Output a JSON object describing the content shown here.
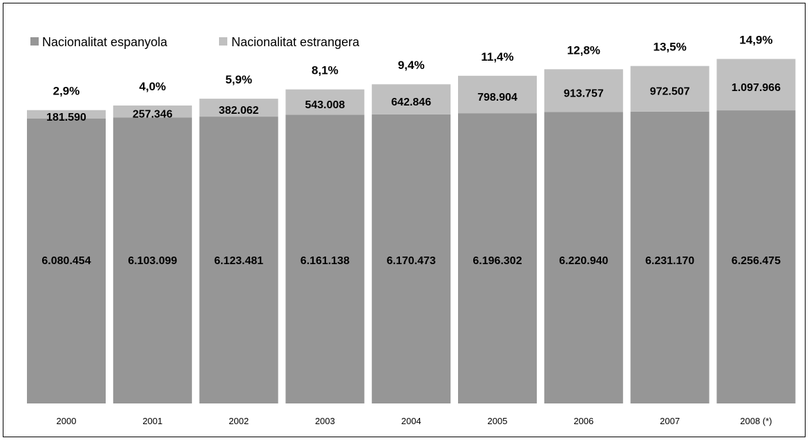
{
  "chart_data": {
    "type": "bar",
    "stacked": true,
    "categories": [
      "2000",
      "2001",
      "2002",
      "2003",
      "2004",
      "2005",
      "2006",
      "2007",
      "2008 (*)"
    ],
    "series": [
      {
        "name": "Nacionalitat espanyola",
        "color": "#969696",
        "values": [
          6080454,
          6103099,
          6123481,
          6161138,
          6170473,
          6196302,
          6220940,
          6231170,
          6256475
        ],
        "labels": [
          "6.080.454",
          "6.103.099",
          "6.123.481",
          "6.161.138",
          "6.170.473",
          "6.196.302",
          "6.220.940",
          "6.231.170",
          "6.256.475"
        ]
      },
      {
        "name": "Nacionalitat estrangera",
        "color": "#c0c0c0",
        "values": [
          181590,
          257346,
          382062,
          543008,
          642846,
          798904,
          913757,
          972507,
          1097966
        ],
        "labels": [
          "181.590",
          "257.346",
          "382.062",
          "543.008",
          "642.846",
          "798.904",
          "913.757",
          "972.507",
          "1.097.966"
        ]
      }
    ],
    "percent_labels": [
      "2,9%",
      "4,0%",
      "5,9%",
      "8,1%",
      "9,4%",
      "11,4%",
      "12,8%",
      "13,5%",
      "14,9%"
    ],
    "legend_position": "top-left",
    "grid": false
  }
}
